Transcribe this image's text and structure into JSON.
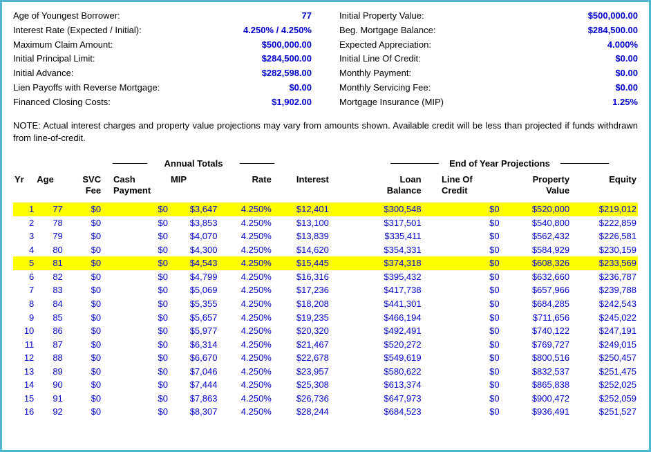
{
  "header": {
    "left": [
      {
        "label": "Age of Youngest Borrower:",
        "value": "77"
      },
      {
        "label": "Interest Rate (Expected / Initial):",
        "value": "4.250%  /  4.250%"
      },
      {
        "label": "Maximum Claim Amount:",
        "value": "$500,000.00"
      },
      {
        "label": "Initial Principal Limit:",
        "value": "$284,500.00"
      },
      {
        "label": "Initial Advance:",
        "value": "$282,598.00"
      },
      {
        "label": "Lien Payoffs with Reverse Mortgage:",
        "value": "$0.00"
      },
      {
        "label": "Financed Closing Costs:",
        "value": "$1,902.00"
      }
    ],
    "right": [
      {
        "label": "Initial Property Value:",
        "value": "$500,000.00"
      },
      {
        "label": "Beg. Mortgage Balance:",
        "value": "$284,500.00"
      },
      {
        "label": "Expected Appreciation:",
        "value": "4.000%"
      },
      {
        "label": "Initial Line Of Credit:",
        "value": "$0.00"
      },
      {
        "label": "Monthly Payment:",
        "value": "$0.00"
      },
      {
        "label": "Monthly Servicing Fee:",
        "value": "$0.00"
      },
      {
        "label": "Mortgage Insurance (MIP)",
        "value": "1.25%"
      }
    ]
  },
  "note": "NOTE: Actual interest charges and property value projections may vary from amounts shown. Available credit will be less than projected if funds withdrawn from line-of-credit.",
  "sections": {
    "annual": "Annual Totals",
    "eoy": "End of Year Projections"
  },
  "columns": {
    "yr": "Yr",
    "age": "Age",
    "svc": "SVC\nFee",
    "cash": "Cash\nPayment",
    "mip": "MIP",
    "rate": "Rate",
    "interest": "Interest",
    "loan": "Loan\nBalance",
    "loc": "Line Of\nCredit",
    "prop": "Property\nValue",
    "equity": "Equity"
  },
  "rows": [
    {
      "yr": "1",
      "age": "77",
      "svc": "$0",
      "cash": "$0",
      "mip": "$3,647",
      "rate": "4.250%",
      "int": "$12,401",
      "loan": "$300,548",
      "loc": "$0",
      "prop": "$520,000",
      "eq": "$219,012",
      "hl": true
    },
    {
      "yr": "2",
      "age": "78",
      "svc": "$0",
      "cash": "$0",
      "mip": "$3,853",
      "rate": "4.250%",
      "int": "$13,100",
      "loan": "$317,501",
      "loc": "$0",
      "prop": "$540,800",
      "eq": "$222,859",
      "hl": false
    },
    {
      "yr": "3",
      "age": "79",
      "svc": "$0",
      "cash": "$0",
      "mip": "$4,070",
      "rate": "4.250%",
      "int": "$13,839",
      "loan": "$335,411",
      "loc": "$0",
      "prop": "$562,432",
      "eq": "$226,581",
      "hl": false
    },
    {
      "yr": "4",
      "age": "80",
      "svc": "$0",
      "cash": "$0",
      "mip": "$4,300",
      "rate": "4.250%",
      "int": "$14,620",
      "loan": "$354,331",
      "loc": "$0",
      "prop": "$584,929",
      "eq": "$230,159",
      "hl": false
    },
    {
      "yr": "5",
      "age": "81",
      "svc": "$0",
      "cash": "$0",
      "mip": "$4,543",
      "rate": "4.250%",
      "int": "$15,445",
      "loan": "$374,318",
      "loc": "$0",
      "prop": "$608,326",
      "eq": "$233,569",
      "hl": true
    },
    {
      "yr": "6",
      "age": "82",
      "svc": "$0",
      "cash": "$0",
      "mip": "$4,799",
      "rate": "4.250%",
      "int": "$16,316",
      "loan": "$395,432",
      "loc": "$0",
      "prop": "$632,660",
      "eq": "$236,787",
      "hl": false
    },
    {
      "yr": "7",
      "age": "83",
      "svc": "$0",
      "cash": "$0",
      "mip": "$5,069",
      "rate": "4.250%",
      "int": "$17,236",
      "loan": "$417,738",
      "loc": "$0",
      "prop": "$657,966",
      "eq": "$239,788",
      "hl": false
    },
    {
      "yr": "8",
      "age": "84",
      "svc": "$0",
      "cash": "$0",
      "mip": "$5,355",
      "rate": "4.250%",
      "int": "$18,208",
      "loan": "$441,301",
      "loc": "$0",
      "prop": "$684,285",
      "eq": "$242,543",
      "hl": false
    },
    {
      "yr": "9",
      "age": "85",
      "svc": "$0",
      "cash": "$0",
      "mip": "$5,657",
      "rate": "4.250%",
      "int": "$19,235",
      "loan": "$466,194",
      "loc": "$0",
      "prop": "$711,656",
      "eq": "$245,022",
      "hl": false
    },
    {
      "yr": "10",
      "age": "86",
      "svc": "$0",
      "cash": "$0",
      "mip": "$5,977",
      "rate": "4.250%",
      "int": "$20,320",
      "loan": "$492,491",
      "loc": "$0",
      "prop": "$740,122",
      "eq": "$247,191",
      "hl": false
    },
    {
      "yr": "11",
      "age": "87",
      "svc": "$0",
      "cash": "$0",
      "mip": "$6,314",
      "rate": "4.250%",
      "int": "$21,467",
      "loan": "$520,272",
      "loc": "$0",
      "prop": "$769,727",
      "eq": "$249,015",
      "hl": false
    },
    {
      "yr": "12",
      "age": "88",
      "svc": "$0",
      "cash": "$0",
      "mip": "$6,670",
      "rate": "4.250%",
      "int": "$22,678",
      "loan": "$549,619",
      "loc": "$0",
      "prop": "$800,516",
      "eq": "$250,457",
      "hl": false
    },
    {
      "yr": "13",
      "age": "89",
      "svc": "$0",
      "cash": "$0",
      "mip": "$7,046",
      "rate": "4.250%",
      "int": "$23,957",
      "loan": "$580,622",
      "loc": "$0",
      "prop": "$832,537",
      "eq": "$251,475",
      "hl": false
    },
    {
      "yr": "14",
      "age": "90",
      "svc": "$0",
      "cash": "$0",
      "mip": "$7,444",
      "rate": "4.250%",
      "int": "$25,308",
      "loan": "$613,374",
      "loc": "$0",
      "prop": "$865,838",
      "eq": "$252,025",
      "hl": false
    },
    {
      "yr": "15",
      "age": "91",
      "svc": "$0",
      "cash": "$0",
      "mip": "$7,863",
      "rate": "4.250%",
      "int": "$26,736",
      "loan": "$647,973",
      "loc": "$0",
      "prop": "$900,472",
      "eq": "$252,059",
      "hl": false
    },
    {
      "yr": "16",
      "age": "92",
      "svc": "$0",
      "cash": "$0",
      "mip": "$8,307",
      "rate": "4.250%",
      "int": "$28,244",
      "loan": "$684,523",
      "loc": "$0",
      "prop": "$936,491",
      "eq": "$251,527",
      "hl": false
    }
  ]
}
